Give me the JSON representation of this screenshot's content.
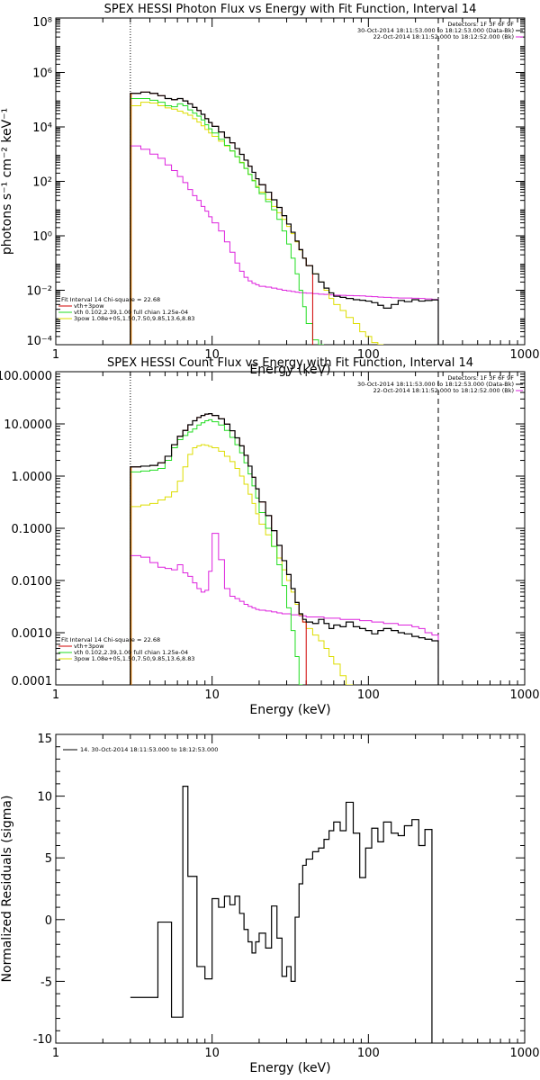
{
  "colors": {
    "total": "#000000",
    "vth_plus_3pow": "#d00000",
    "vth": "#22dd22",
    "3pow": "#dddd00",
    "data": "#000000",
    "background": "#dd22dd",
    "energy_range_marker": "#ff8c00"
  },
  "chart_data": [
    {
      "type": "line",
      "title": "SPEX HESSI Photon Flux vs Energy with Fit Function, Interval 14",
      "xlabel": "Energy (keV)",
      "ylabel": "photons s⁻¹ cm⁻² keV⁻¹",
      "xscale": "log",
      "yscale": "log",
      "xlim": [
        1,
        1000
      ],
      "ylim": [
        0.0001,
        100000000
      ],
      "x_ticks": [
        {
          "v": 1,
          "label": "1"
        },
        {
          "v": 10,
          "label": "10"
        },
        {
          "v": 100,
          "label": "100"
        },
        {
          "v": 1000,
          "label": "1000"
        }
      ],
      "y_ticks": [
        {
          "v": 0.0001,
          "label": "10⁻⁴"
        },
        {
          "v": 0.01,
          "label": "10⁻²"
        },
        {
          "v": 1,
          "label": "10⁰"
        },
        {
          "v": 100,
          "label": "10²"
        },
        {
          "v": 10000,
          "label": "10⁴"
        },
        {
          "v": 1000000,
          "label": "10⁶"
        },
        {
          "v": 100000000,
          "label": "10⁸"
        }
      ],
      "vlines": [
        {
          "x": 3,
          "style": "dotted"
        },
        {
          "x": 280,
          "style": "dashed"
        }
      ],
      "legend_top": {
        "lines": [
          "Detectors: 1F 3F 6F 9F",
          "30-Oct-2014 18:11:53.000 to 18:12:53.000 (Data-Bk)",
          "22-Oct-2014 18:11:52.000 to 18:12:52.000 (Bk)"
        ]
      },
      "legend_bottom": [
        "Fit Interval 14   Chi-square = 22.68",
        "vth+3pow",
        "vth 0.102,2.39,1.00  full chian 1.25e-04",
        "3pow 1.08e+05,1.50,7.50,9.85,13.6,8.83"
      ],
      "edges": [
        3.0,
        3.5,
        4.0,
        4.5,
        5.0,
        5.5,
        6.0,
        6.5,
        7.0,
        7.5,
        8.0,
        8.5,
        9.0,
        9.5,
        10.0,
        11.0,
        12.0,
        13.0,
        14.0,
        15.0,
        16.0,
        17.0,
        18.0,
        19.0,
        20.0,
        22.0,
        24.0,
        26.0,
        28.0,
        30.0,
        32.0,
        34.0,
        36.0,
        38.0,
        40.0,
        44.0,
        48.0,
        52.0,
        56.0,
        60.0,
        66.0,
        72.0,
        80.0,
        88.0,
        96.0,
        105.0,
        115.0,
        125.0,
        140.0,
        155.0,
        170.0,
        190.0,
        210.0,
        230.0,
        255.0,
        280.0
      ],
      "series": [
        {
          "key": "bk",
          "color": "#dd22dd",
          "values": [
            2000,
            1500,
            1000,
            700,
            400,
            250,
            150,
            90,
            50,
            30,
            20,
            12,
            8,
            5,
            3,
            1.5,
            0.6,
            0.25,
            0.1,
            0.05,
            0.03,
            0.022,
            0.018,
            0.016,
            0.014,
            0.013,
            0.012,
            0.011,
            0.01,
            0.0095,
            0.009,
            0.0085,
            0.0082,
            0.008,
            0.0078,
            0.0075,
            0.0072,
            0.007,
            0.0068,
            0.0066,
            0.0065,
            0.0064,
            0.0063,
            0.0062,
            0.006,
            0.0058,
            0.0056,
            0.0055,
            0.0053,
            0.0052,
            0.0052,
            0.0051,
            0.005,
            0.0048,
            0.0046
          ]
        },
        {
          "key": "3pow",
          "color": "#dddd00",
          "values": [
            60000,
            80000,
            75000,
            60000,
            50000,
            45000,
            38000,
            32000,
            27000,
            20000,
            15000,
            11000,
            8000,
            6000,
            4500,
            3000,
            2000,
            1300,
            800,
            500,
            300,
            180,
            110,
            65,
            40,
            22,
            12,
            7,
            4,
            2.2,
            1.2,
            0.6,
            0.3,
            0.15,
            0.08,
            0.04,
            0.02,
            0.01,
            0.005,
            0.003,
            0.0018,
            0.001,
            0.0006,
            0.0003,
            0.0002,
            0.00012,
            8e-05
          ]
        },
        {
          "key": "vth",
          "color": "#22dd22",
          "values": [
            110000,
            110000,
            95000,
            80000,
            60000,
            55000,
            70000,
            60000,
            42000,
            32000,
            25000,
            18000,
            12000,
            8500,
            6000,
            3500,
            2100,
            1300,
            800,
            480,
            300,
            180,
            105,
            60,
            35,
            18,
            9,
            4,
            1.5,
            0.5,
            0.15,
            0.04,
            0.01,
            0.0025,
            0.0006,
            0.00015,
            5e-05
          ]
        },
        {
          "key": "vth_plus_3pow",
          "color": "#d00000",
          "values": [
            170000,
            190000,
            170000,
            140000,
            110000,
            100000,
            110000,
            90000,
            70000,
            52000,
            40000,
            29000,
            20000,
            14500,
            10500,
            6500,
            4100,
            2600,
            1600,
            980,
            600,
            360,
            215,
            125,
            75,
            40,
            21,
            11,
            5.5,
            2.7,
            1.35,
            0.64,
            0.31,
            0.15,
            0.08
          ]
        },
        {
          "key": "total",
          "color": "#000000",
          "values": [
            170000,
            190000,
            170000,
            140000,
            110000,
            100000,
            110000,
            90000,
            70000,
            52000,
            40000,
            29000,
            20000,
            14500,
            10500,
            6500,
            4100,
            2600,
            1600,
            980,
            600,
            360,
            215,
            125,
            75,
            40,
            21,
            11,
            5.5,
            2.7,
            1.35,
            0.64,
            0.31,
            0.15,
            0.08,
            0.04,
            0.02,
            0.012,
            0.008,
            0.006,
            0.0055,
            0.005,
            0.0045,
            0.0043,
            0.004,
            0.0035,
            0.0028,
            0.0022,
            0.003,
            0.0042,
            0.0038,
            0.0045,
            0.004,
            0.0042,
            0.0044
          ]
        }
      ]
    },
    {
      "type": "line",
      "title": "SPEX HESSI Count Flux vs Energy with Fit Function, Interval 14",
      "xlabel": "Energy (keV)",
      "ylabel": "",
      "xscale": "log",
      "yscale": "log",
      "xlim": [
        1,
        1000
      ],
      "ylim": [
        0.0001,
        100
      ],
      "x_ticks": [
        {
          "v": 1,
          "label": "1"
        },
        {
          "v": 10,
          "label": "10"
        },
        {
          "v": 100,
          "label": "100"
        },
        {
          "v": 1000,
          "label": "1000"
        }
      ],
      "y_ticks": [
        {
          "v": 0.0001,
          "label": "0.0001"
        },
        {
          "v": 0.001,
          "label": "0.0010"
        },
        {
          "v": 0.01,
          "label": "0.0100"
        },
        {
          "v": 0.1,
          "label": "0.1000"
        },
        {
          "v": 1,
          "label": "1.0000"
        },
        {
          "v": 10,
          "label": "10.0000"
        },
        {
          "v": 100,
          "label": "100.0000"
        }
      ],
      "vlines": [
        {
          "x": 3,
          "style": "dotted"
        },
        {
          "x": 280,
          "style": "dashed"
        }
      ],
      "legend_top": {
        "lines": [
          "Detectors: 1F 3F 6F 9F",
          "30-Oct-2014 18:11:53.000 to 18:12:53.000 (Data-Bk)",
          "22-Oct-2014 18:11:52.000 to 18:12:52.000 (Bk)"
        ]
      },
      "legend_bottom": [
        "Fit Interval 14   Chi-square = 22.68",
        "vth+3pow",
        "vth 0.102,2.39,1.00  full chian 1.25e-04",
        "3pow 1.08e+05,1.50,7.50,9.85,13.6,8.83"
      ],
      "edges": [
        3.0,
        3.5,
        4.0,
        4.5,
        5.0,
        5.5,
        6.0,
        6.5,
        7.0,
        7.5,
        8.0,
        8.5,
        9.0,
        9.5,
        10.0,
        11.0,
        12.0,
        13.0,
        14.0,
        15.0,
        16.0,
        17.0,
        18.0,
        19.0,
        20.0,
        22.0,
        24.0,
        26.0,
        28.0,
        30.0,
        32.0,
        34.0,
        36.0,
        38.0,
        40.0,
        44.0,
        48.0,
        52.0,
        56.0,
        60.0,
        66.0,
        72.0,
        80.0,
        88.0,
        96.0,
        105.0,
        115.0,
        125.0,
        140.0,
        155.0,
        170.0,
        190.0,
        210.0,
        230.0,
        255.0,
        280.0
      ],
      "series": [
        {
          "key": "bk",
          "color": "#dd22dd",
          "values": [
            0.03,
            0.028,
            0.022,
            0.018,
            0.017,
            0.016,
            0.02,
            0.014,
            0.012,
            0.009,
            0.007,
            0.006,
            0.0065,
            0.015,
            0.08,
            0.025,
            0.007,
            0.005,
            0.0045,
            0.004,
            0.0035,
            0.0032,
            0.003,
            0.0028,
            0.0027,
            0.0026,
            0.0025,
            0.0024,
            0.0023,
            0.0023,
            0.0022,
            0.0022,
            0.0021,
            0.0021,
            0.002,
            0.002,
            0.002,
            0.0019,
            0.0019,
            0.0019,
            0.0018,
            0.0018,
            0.0018,
            0.0017,
            0.0017,
            0.0016,
            0.0016,
            0.0015,
            0.0015,
            0.0014,
            0.0014,
            0.0013,
            0.0012,
            0.001,
            0.0009
          ]
        },
        {
          "key": "3pow",
          "color": "#dddd00",
          "values": [
            0.26,
            0.28,
            0.3,
            0.35,
            0.4,
            0.5,
            0.8,
            1.5,
            2.6,
            3.5,
            3.8,
            4.0,
            3.9,
            3.7,
            3.5,
            3.0,
            2.4,
            1.9,
            1.4,
            1.0,
            0.7,
            0.45,
            0.3,
            0.19,
            0.12,
            0.075,
            0.045,
            0.027,
            0.016,
            0.01,
            0.006,
            0.0035,
            0.0022,
            0.0016,
            0.0012,
            0.0009,
            0.0007,
            0.0005,
            0.00035,
            0.00025,
            0.00015,
            0.0001
          ]
        },
        {
          "key": "vth",
          "color": "#22dd22",
          "values": [
            1.2,
            1.25,
            1.3,
            1.4,
            2.0,
            3.5,
            5.0,
            6.0,
            7.0,
            8.0,
            9.5,
            10.5,
            11.5,
            12.0,
            11.0,
            9.5,
            7.5,
            5.5,
            4.0,
            2.8,
            1.8,
            1.1,
            0.65,
            0.38,
            0.2,
            0.1,
            0.045,
            0.02,
            0.008,
            0.003,
            0.0011,
            0.00035,
            0.0001
          ]
        },
        {
          "key": "vth_plus_3pow",
          "color": "#d00000",
          "values": [
            1.5,
            1.55,
            1.6,
            1.8,
            2.4,
            4.0,
            5.8,
            7.5,
            9.6,
            11.5,
            13.3,
            14.5,
            15.4,
            15.7,
            14.5,
            12.5,
            9.9,
            7.4,
            5.4,
            3.8,
            2.5,
            1.55,
            0.95,
            0.57,
            0.32,
            0.175,
            0.09,
            0.047,
            0.024,
            0.013,
            0.007,
            0.0038,
            0.0023,
            0.0016
          ]
        },
        {
          "key": "total",
          "color": "#000000",
          "values": [
            1.5,
            1.55,
            1.6,
            1.8,
            2.4,
            4.0,
            5.8,
            7.5,
            9.6,
            11.5,
            13.3,
            14.5,
            15.4,
            15.7,
            14.5,
            12.5,
            9.9,
            7.4,
            5.4,
            3.8,
            2.5,
            1.55,
            0.95,
            0.57,
            0.32,
            0.175,
            0.09,
            0.047,
            0.024,
            0.013,
            0.007,
            0.0038,
            0.0023,
            0.0018,
            0.0016,
            0.0015,
            0.0018,
            0.0015,
            0.0012,
            0.0014,
            0.0013,
            0.0016,
            0.0013,
            0.0012,
            0.0011,
            0.00095,
            0.0011,
            0.0012,
            0.0011,
            0.001,
            0.00095,
            0.00085,
            0.0008,
            0.00075,
            0.0007
          ]
        }
      ]
    },
    {
      "type": "line",
      "title": "",
      "xlabel": "Energy (keV)",
      "ylabel": "Normalized Residuals (sigma)",
      "xscale": "log",
      "yscale": "linear",
      "xlim": [
        1,
        1000
      ],
      "ylim": [
        -10,
        15
      ],
      "x_ticks": [
        {
          "v": 1,
          "label": "1"
        },
        {
          "v": 10,
          "label": "10"
        },
        {
          "v": 100,
          "label": "100"
        },
        {
          "v": 1000,
          "label": "1000"
        }
      ],
      "y_ticks": [
        {
          "v": -10,
          "label": "-10"
        },
        {
          "v": -5,
          "label": "-5"
        },
        {
          "v": 0,
          "label": "0"
        },
        {
          "v": 5,
          "label": "5"
        },
        {
          "v": 10,
          "label": "10"
        },
        {
          "v": 15,
          "label": "15"
        }
      ],
      "legend_top_left": "14. 30-Oct-2014 18:11:53.000 to 18:12:53.000",
      "edges": [
        3.0,
        4.5,
        5.5,
        6.5,
        7.0,
        8.0,
        9.0,
        10.0,
        11.0,
        12.0,
        13.0,
        14.0,
        15.0,
        16.0,
        17.0,
        18.0,
        19.0,
        20.0,
        22.0,
        24.0,
        26.0,
        28.0,
        30.0,
        32.0,
        34.0,
        36.0,
        38.0,
        40.0,
        44.0,
        48.0,
        52.0,
        56.0,
        60.0,
        66.0,
        72.0,
        80.0,
        88.0,
        96.0,
        105.0,
        115.0,
        125.0,
        140.0,
        155.0,
        170.0,
        190.0,
        210.0,
        230.0,
        255.0,
        280.0
      ],
      "series": [
        {
          "key": "residuals",
          "color": "#000000",
          "values": [
            -6.3,
            -0.2,
            -7.9,
            10.8,
            3.5,
            -3.8,
            -4.8,
            1.7,
            1.0,
            1.9,
            1.2,
            1.9,
            0.5,
            -0.8,
            -1.8,
            -2.7,
            -1.8,
            -1.1,
            -2.3,
            1.1,
            -1.5,
            -4.6,
            -3.8,
            -5.0,
            0.2,
            2.9,
            4.4,
            4.9,
            5.5,
            5.8,
            6.5,
            7.2,
            7.9,
            7.2,
            9.5,
            7.0,
            3.4,
            5.8,
            7.4,
            6.3,
            7.9,
            7.0,
            6.8,
            7.6,
            8.1,
            6.0,
            7.3
          ]
        }
      ]
    }
  ]
}
